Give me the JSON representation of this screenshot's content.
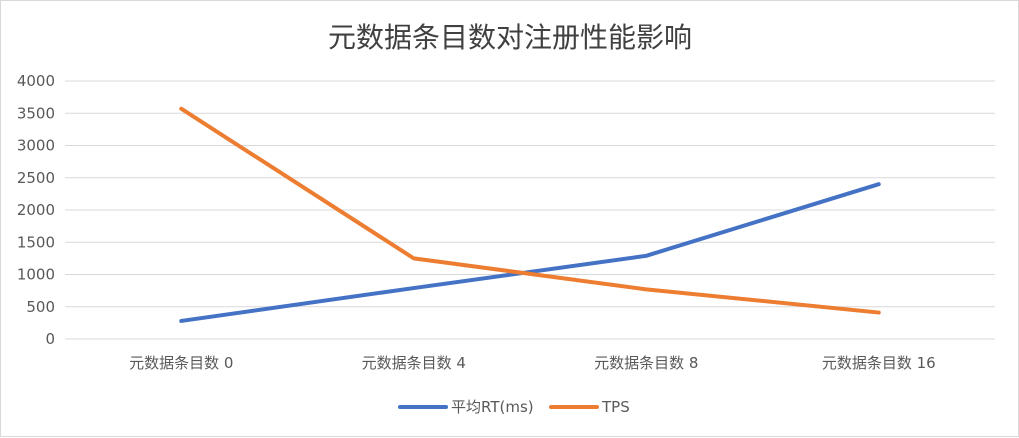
{
  "chart_data": {
    "type": "line",
    "title": "元数据条目数对注册性能影响",
    "categories": [
      "元数据条目数 0",
      "元数据条目数 4",
      "元数据条目数 8",
      "元数据条目数 16"
    ],
    "ylim": [
      0,
      4000
    ],
    "yticks": [
      0,
      500,
      1000,
      1500,
      2000,
      2500,
      3000,
      3500,
      4000
    ],
    "grid": true,
    "legend": "bottom",
    "series": [
      {
        "name": "平均RT(ms)",
        "color": "#4472c4",
        "values": [
          280,
          790,
          1290,
          2400
        ]
      },
      {
        "name": "TPS",
        "color": "#ed7d31",
        "values": [
          3570,
          1250,
          770,
          410
        ]
      }
    ]
  }
}
